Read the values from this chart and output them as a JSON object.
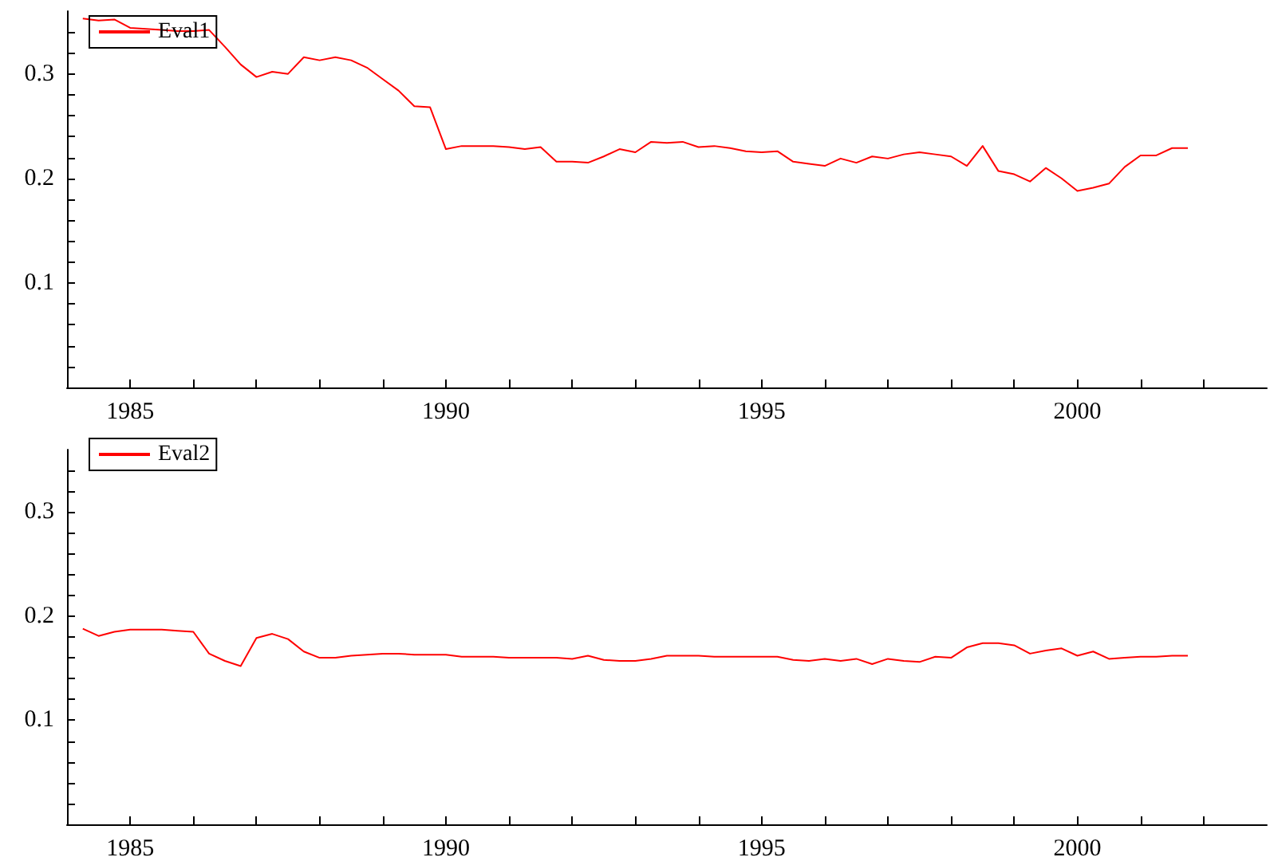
{
  "chart_data": [
    {
      "type": "line",
      "x": [
        1984.25,
        1984.5,
        1984.75,
        1985,
        1985.25,
        1985.5,
        1985.75,
        1986,
        1986.25,
        1986.5,
        1986.75,
        1987,
        1987.25,
        1987.5,
        1987.75,
        1988,
        1988.25,
        1988.5,
        1988.75,
        1989,
        1989.25,
        1989.5,
        1989.75,
        1990,
        1990.25,
        1990.5,
        1990.75,
        1991,
        1991.25,
        1991.5,
        1991.75,
        1992,
        1992.25,
        1992.5,
        1992.75,
        1993,
        1993.25,
        1993.5,
        1993.75,
        1994,
        1994.25,
        1994.5,
        1994.75,
        1995,
        1995.25,
        1995.5,
        1995.75,
        1996,
        1996.25,
        1996.5,
        1996.75,
        1997,
        1997.25,
        1997.5,
        1997.75,
        1998,
        1998.25,
        1998.5,
        1998.75,
        1999,
        1999.25,
        1999.5,
        1999.75,
        2000,
        2000.25,
        2000.5,
        2000.75,
        2001,
        2001.25,
        2001.5,
        2001.75
      ],
      "series": [
        {
          "name": "Eval1",
          "color": "#ff0000",
          "values": [
            0.353,
            0.351,
            0.352,
            0.344,
            0.343,
            0.342,
            0.341,
            0.341,
            0.342,
            0.326,
            0.309,
            0.297,
            0.302,
            0.3,
            0.316,
            0.313,
            0.316,
            0.313,
            0.306,
            0.295,
            0.284,
            0.269,
            0.268,
            0.228,
            0.231,
            0.231,
            0.231,
            0.23,
            0.228,
            0.23,
            0.216,
            0.216,
            0.215,
            0.221,
            0.228,
            0.225,
            0.235,
            0.234,
            0.235,
            0.23,
            0.231,
            0.229,
            0.226,
            0.225,
            0.226,
            0.216,
            0.214,
            0.212,
            0.219,
            0.215,
            0.221,
            0.219,
            0.223,
            0.225,
            0.223,
            0.221,
            0.212,
            0.231,
            0.207,
            0.204,
            0.197,
            0.21,
            0.2,
            0.188,
            0.191,
            0.195,
            0.211,
            0.222,
            0.222,
            0.229,
            0.229
          ]
        }
      ],
      "xlim": [
        1984,
        2003
      ],
      "xticks": [
        1985,
        {
          "value": 1986,
          "label": null
        },
        {
          "value": 1987,
          "label": null
        },
        {
          "value": 1988,
          "label": null
        },
        {
          "value": 1989,
          "label": null
        },
        1990,
        {
          "value": 1991,
          "label": null
        },
        {
          "value": 1992,
          "label": null
        },
        {
          "value": 1993,
          "label": null
        },
        {
          "value": 1994,
          "label": null
        },
        1995,
        {
          "value": 1996,
          "label": null
        },
        {
          "value": 1997,
          "label": null
        },
        {
          "value": 1998,
          "label": null
        },
        {
          "value": 1999,
          "label": null
        },
        2000,
        {
          "value": 2001,
          "label": null
        },
        {
          "value": 2002,
          "label": null
        }
      ],
      "ylim": [
        0,
        0.36
      ],
      "yticks": [
        {
          "value": 0.02,
          "label": null
        },
        {
          "value": 0.04,
          "label": null
        },
        {
          "value": 0.06,
          "label": null
        },
        {
          "value": 0.08,
          "label": null
        },
        0.1,
        {
          "value": 0.12,
          "label": null
        },
        {
          "value": 0.14,
          "label": null
        },
        {
          "value": 0.16,
          "label": null
        },
        {
          "value": 0.18,
          "label": null
        },
        0.2,
        {
          "value": 0.22,
          "label": null
        },
        {
          "value": 0.24,
          "label": null
        },
        {
          "value": 0.26,
          "label": null
        },
        {
          "value": 0.28,
          "label": null
        },
        0.3,
        {
          "value": 0.32,
          "label": null
        },
        {
          "value": 0.34,
          "label": null
        }
      ],
      "legend": "top left",
      "grid": false,
      "marker": "none",
      "line_style": "solid"
    },
    {
      "type": "line",
      "x": [
        1984.25,
        1984.5,
        1984.75,
        1985,
        1985.25,
        1985.5,
        1985.75,
        1986,
        1986.25,
        1986.5,
        1986.75,
        1987,
        1987.25,
        1987.5,
        1987.75,
        1988,
        1988.25,
        1988.5,
        1988.75,
        1989,
        1989.25,
        1989.5,
        1989.75,
        1990,
        1990.25,
        1990.5,
        1990.75,
        1991,
        1991.25,
        1991.5,
        1991.75,
        1992,
        1992.25,
        1992.5,
        1992.75,
        1993,
        1993.25,
        1993.5,
        1993.75,
        1994,
        1994.25,
        1994.5,
        1994.75,
        1995,
        1995.25,
        1995.5,
        1995.75,
        1996,
        1996.25,
        1996.5,
        1996.75,
        1997,
        1997.25,
        1997.5,
        1997.75,
        1998,
        1998.25,
        1998.5,
        1998.75,
        1999,
        1999.25,
        1999.5,
        1999.75,
        2000,
        2000.25,
        2000.5,
        2000.75,
        2001,
        2001.25,
        2001.5,
        2001.75
      ],
      "series": [
        {
          "name": "Eval2",
          "color": "#ff0000",
          "values": [
            0.188,
            0.181,
            0.185,
            0.187,
            0.187,
            0.187,
            0.186,
            0.185,
            0.164,
            0.157,
            0.152,
            0.179,
            0.183,
            0.178,
            0.166,
            0.16,
            0.16,
            0.162,
            0.163,
            0.164,
            0.164,
            0.163,
            0.163,
            0.163,
            0.161,
            0.161,
            0.161,
            0.16,
            0.16,
            0.16,
            0.16,
            0.159,
            0.162,
            0.158,
            0.157,
            0.157,
            0.159,
            0.162,
            0.162,
            0.162,
            0.161,
            0.161,
            0.161,
            0.161,
            0.161,
            0.158,
            0.157,
            0.159,
            0.157,
            0.159,
            0.154,
            0.159,
            0.157,
            0.156,
            0.161,
            0.16,
            0.17,
            0.174,
            0.174,
            0.172,
            0.164,
            0.167,
            0.169,
            0.162,
            0.166,
            0.159,
            0.16,
            0.161,
            0.161,
            0.162,
            0.162
          ]
        }
      ],
      "xlim": [
        1984,
        2003
      ],
      "xticks": [
        1985,
        {
          "value": 1986,
          "label": null
        },
        {
          "value": 1987,
          "label": null
        },
        {
          "value": 1988,
          "label": null
        },
        {
          "value": 1989,
          "label": null
        },
        1990,
        {
          "value": 1991,
          "label": null
        },
        {
          "value": 1992,
          "label": null
        },
        {
          "value": 1993,
          "label": null
        },
        {
          "value": 1994,
          "label": null
        },
        1995,
        {
          "value": 1996,
          "label": null
        },
        {
          "value": 1997,
          "label": null
        },
        {
          "value": 1998,
          "label": null
        },
        {
          "value": 1999,
          "label": null
        },
        2000,
        {
          "value": 2001,
          "label": null
        },
        {
          "value": 2002,
          "label": null
        }
      ],
      "ylim": [
        0,
        0.36
      ],
      "yticks": [
        {
          "value": 0.02,
          "label": null
        },
        {
          "value": 0.04,
          "label": null
        },
        {
          "value": 0.06,
          "label": null
        },
        {
          "value": 0.08,
          "label": null
        },
        0.1,
        {
          "value": 0.12,
          "label": null
        },
        {
          "value": 0.14,
          "label": null
        },
        {
          "value": 0.16,
          "label": null
        },
        {
          "value": 0.18,
          "label": null
        },
        0.2,
        {
          "value": 0.22,
          "label": null
        },
        {
          "value": 0.24,
          "label": null
        },
        {
          "value": 0.26,
          "label": null
        },
        {
          "value": 0.28,
          "label": null
        },
        0.3,
        {
          "value": 0.32,
          "label": null
        },
        {
          "value": 0.34,
          "label": null
        }
      ],
      "legend": "top left",
      "grid": false,
      "marker": "none",
      "line_style": "solid"
    }
  ]
}
